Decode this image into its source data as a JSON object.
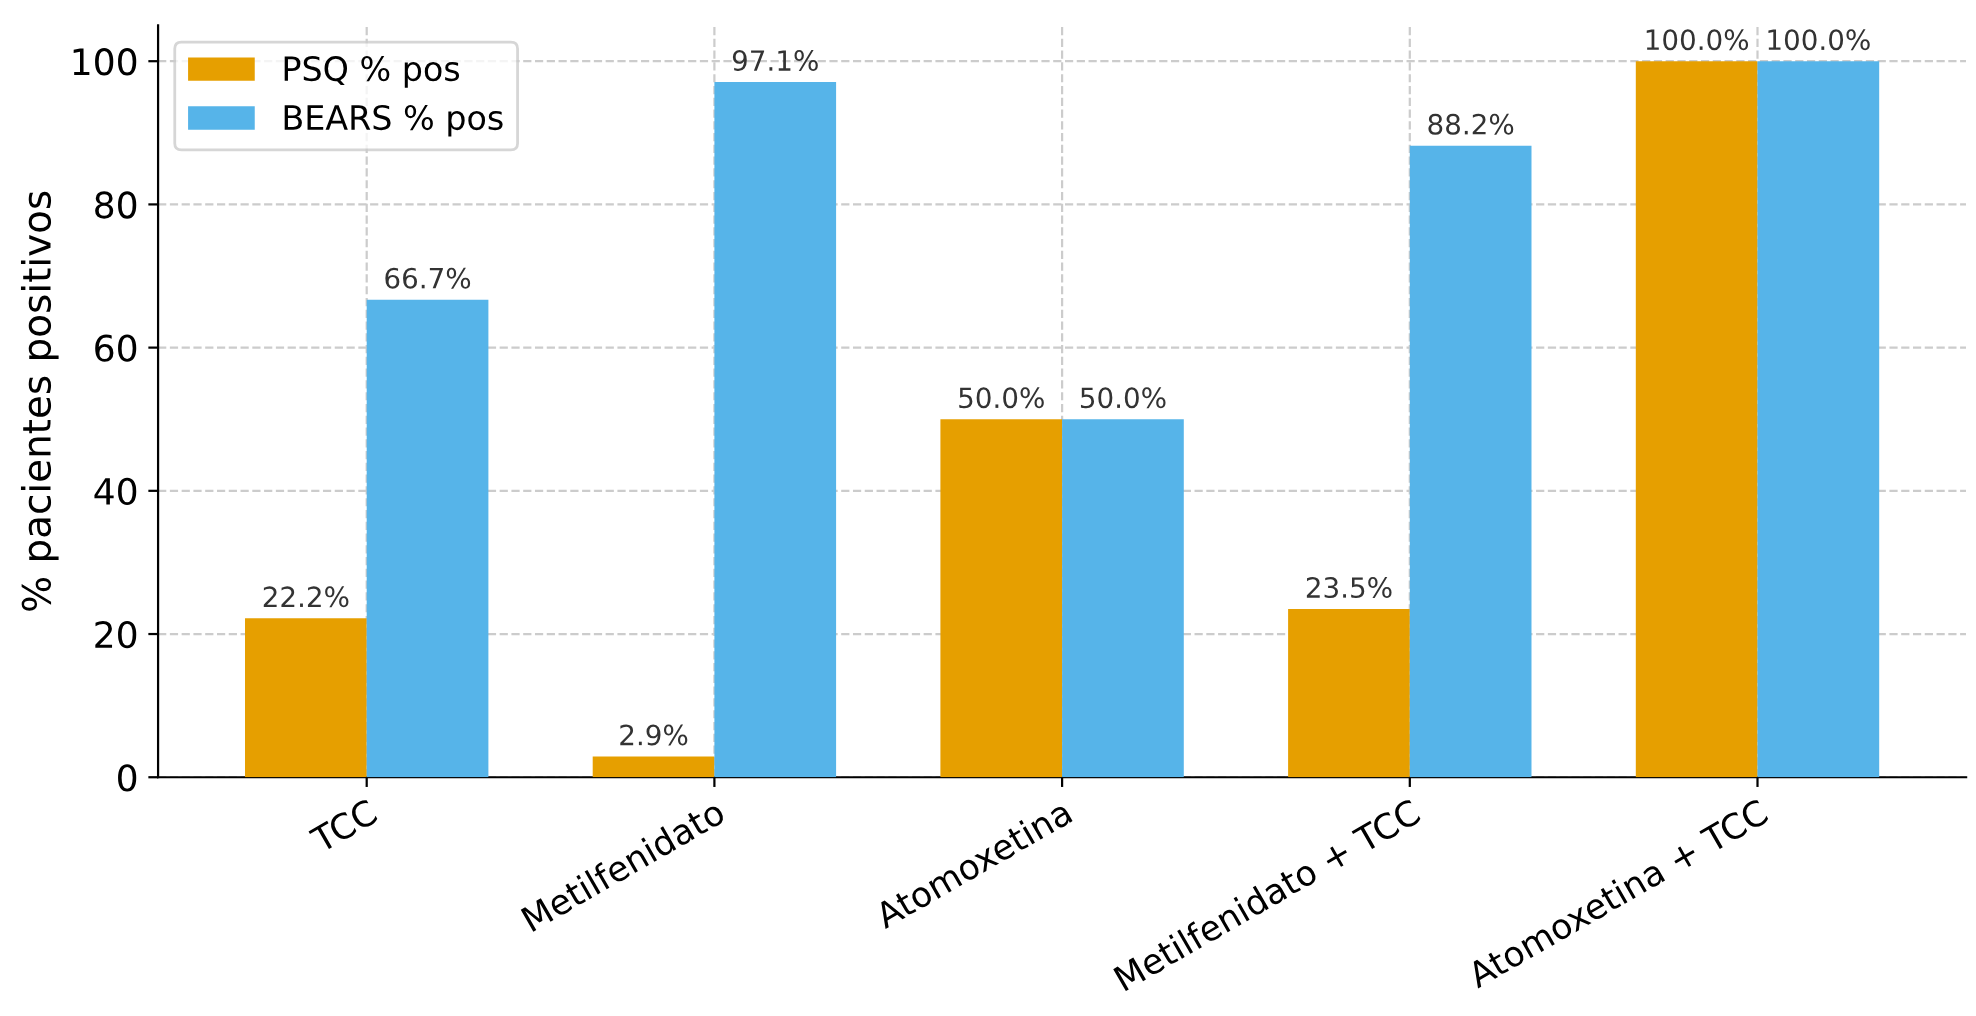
{
  "chart_data": {
    "type": "bar",
    "ylabel": "% pacientes positivos",
    "categories": [
      "TCC",
      "Metilfenidato",
      "Atomoxetina",
      "Metilfenidato + TCC",
      "Atomoxetina + TCC"
    ],
    "series": [
      {
        "name": "PSQ % pos",
        "color": "#e69f00",
        "values": [
          22.2,
          2.9,
          50.0,
          23.5,
          100.0
        ],
        "value_labels": [
          "22.2%",
          "2.9%",
          "50.0%",
          "23.5%",
          "100.0%"
        ]
      },
      {
        "name": "BEARS % pos",
        "color": "#56b4e9",
        "values": [
          66.7,
          97.1,
          50.0,
          88.2,
          100.0
        ],
        "value_labels": [
          "66.7%",
          "97.1%",
          "50.0%",
          "88.2%",
          "100.0%"
        ]
      }
    ],
    "ylim": [
      0,
      105
    ],
    "yticks": [
      0,
      20,
      40,
      60,
      80,
      100
    ],
    "grid": true,
    "legend": "top left"
  }
}
